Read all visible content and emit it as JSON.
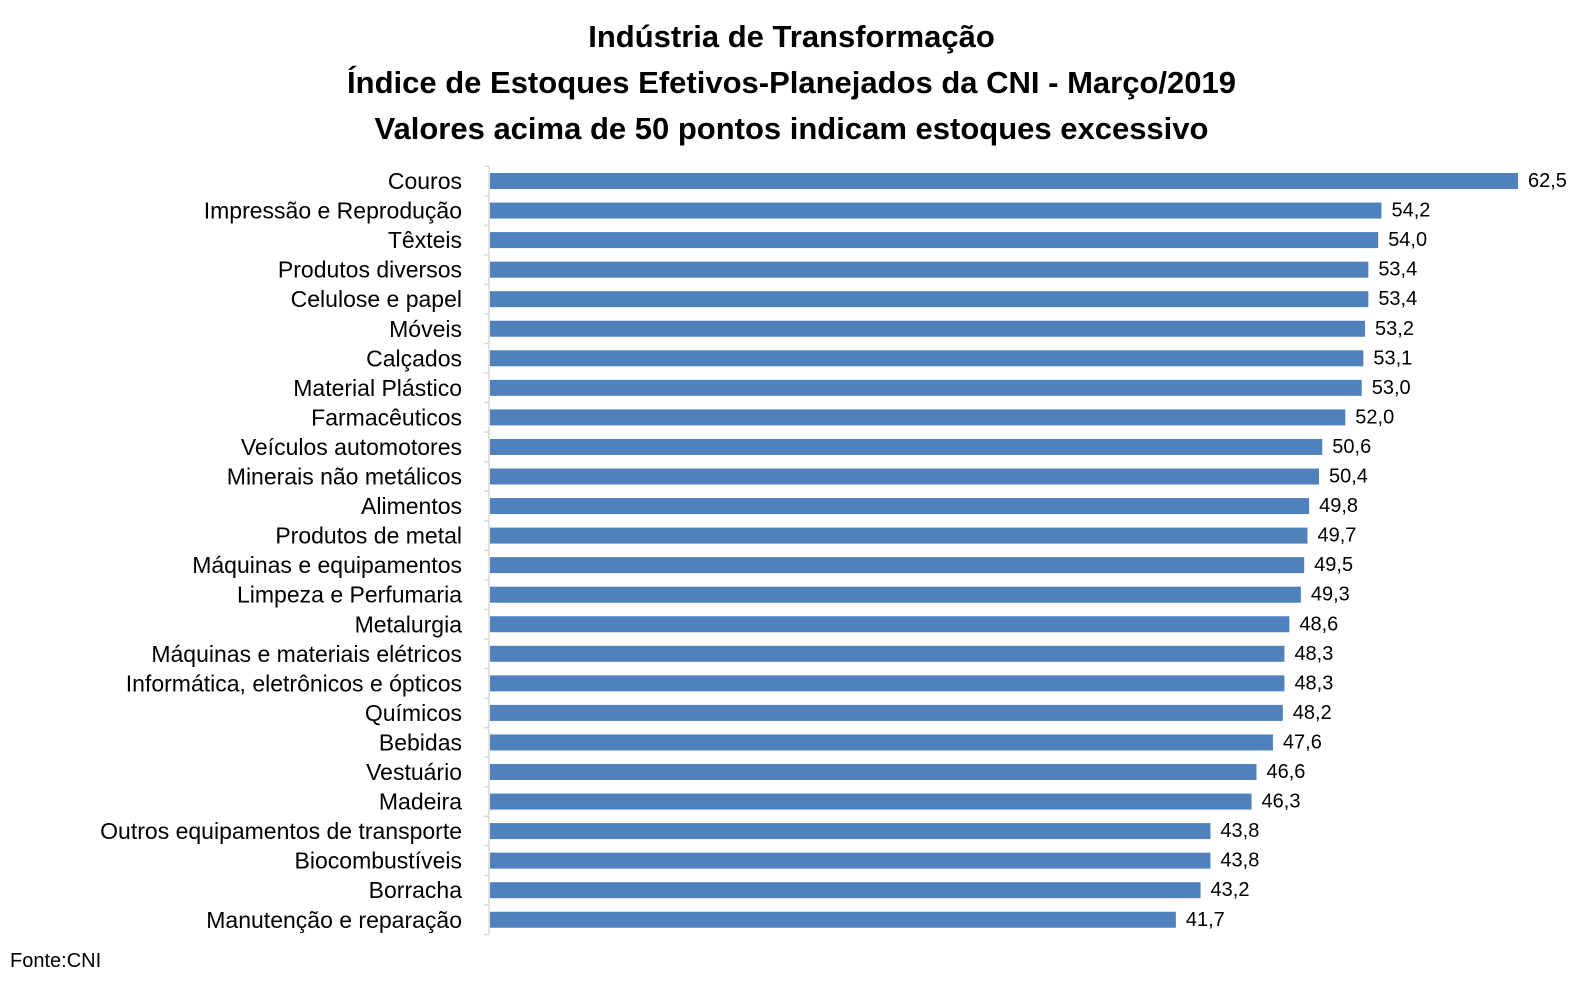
{
  "chart_data": {
    "type": "bar",
    "orientation": "horizontal",
    "title_lines": [
      "Indústria de Transformação",
      "Índice de Estoques Efetivos-Planejados da CNI - Março/2019",
      "Valores acima de 50 pontos indicam estoques excessivo"
    ],
    "categories": [
      "Couros",
      "Impressão e Reprodução",
      "Têxteis",
      "Produtos diversos",
      "Celulose e papel",
      "Móveis",
      "Calçados",
      "Material Plástico",
      "Farmacêuticos",
      "Veículos automotores",
      "Minerais não metálicos",
      "Alimentos",
      "Produtos de metal",
      "Máquinas e equipamentos",
      "Limpeza e Perfumaria",
      "Metalurgia",
      "Máquinas e materiais elétricos",
      "Informática, eletrônicos e ópticos",
      "Químicos",
      "Bebidas",
      "Vestuário",
      "Madeira",
      "Outros equipamentos de transporte",
      "Biocombustíveis",
      "Borracha",
      "Manutenção e reparação"
    ],
    "values": [
      62.5,
      54.2,
      54.0,
      53.4,
      53.4,
      53.2,
      53.1,
      53.0,
      52.0,
      50.6,
      50.4,
      49.8,
      49.7,
      49.5,
      49.3,
      48.6,
      48.3,
      48.3,
      48.2,
      47.6,
      46.6,
      46.3,
      43.8,
      43.8,
      43.2,
      41.7
    ],
    "value_labels": [
      "62,5",
      "54,2",
      "54,0",
      "53,4",
      "53,4",
      "53,2",
      "53,1",
      "53,0",
      "52,0",
      "50,6",
      "50,4",
      "49,8",
      "49,7",
      "49,5",
      "49,3",
      "48,6",
      "48,3",
      "48,3",
      "48,2",
      "47,6",
      "46,6",
      "46,3",
      "43,8",
      "43,8",
      "43,2",
      "41,7"
    ],
    "xlim": [
      0,
      62.5
    ],
    "grid": false,
    "legend": "none",
    "xlabel": "",
    "ylabel": "",
    "bar_color": "#4f81bd",
    "axis_color": "#d9d9d9"
  },
  "source": "Fonte:CNI"
}
